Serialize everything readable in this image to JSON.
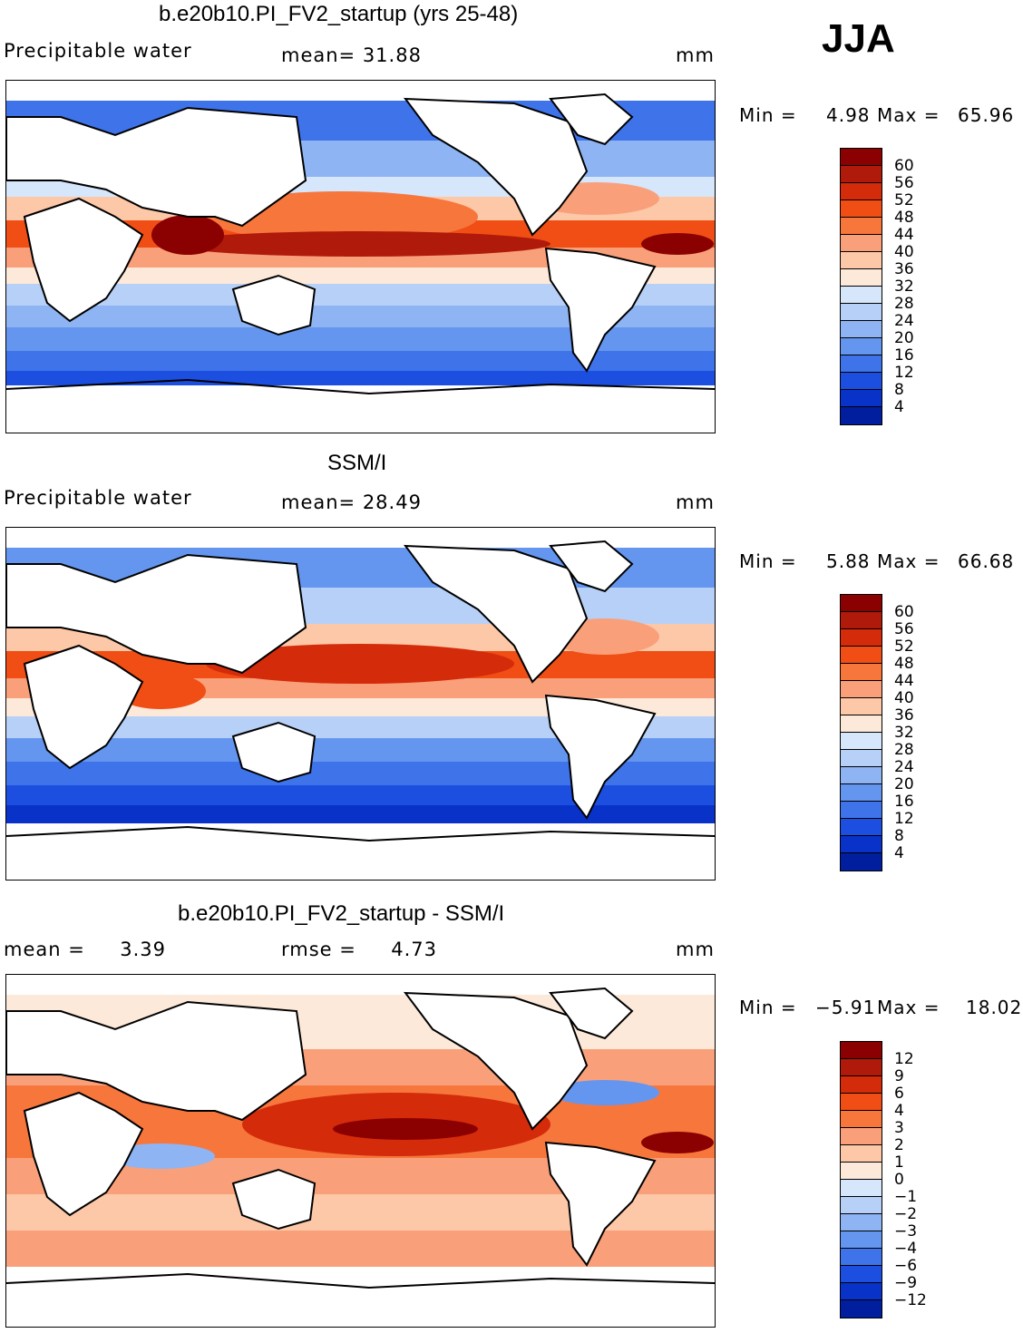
{
  "season": "JJA",
  "panels": [
    {
      "title": "b.e20b10.PI_FV2_startup (yrs 25-48)",
      "left_label": "Precipitable water",
      "center_label": "mean=   31.88",
      "units": "mm",
      "min_label": "Min =",
      "min_value": "4.98",
      "max_label": "Max =",
      "max_value": "65.96",
      "colorbar": {
        "levels": [
          "60",
          "56",
          "52",
          "48",
          "44",
          "40",
          "36",
          "32",
          "28",
          "24",
          "20",
          "16",
          "12",
          "8",
          "4"
        ],
        "colors": [
          "#8b0000",
          "#b01a0a",
          "#d42b0b",
          "#f04e14",
          "#f7763c",
          "#f9a07a",
          "#fdc8a8",
          "#fde9d9",
          "#d6e6fb",
          "#b6d0f7",
          "#8eb4f3",
          "#6496ef",
          "#3e73ea",
          "#1c4fe0",
          "#0832c8",
          "#001e9e"
        ]
      }
    },
    {
      "title": "SSM/I",
      "left_label": "Precipitable water",
      "center_label": "mean=   28.49",
      "units": "mm",
      "min_label": "Min =",
      "min_value": "5.88",
      "max_label": "Max =",
      "max_value": "66.68",
      "colorbar": {
        "levels": [
          "60",
          "56",
          "52",
          "48",
          "44",
          "40",
          "36",
          "32",
          "28",
          "24",
          "20",
          "16",
          "12",
          "8",
          "4"
        ],
        "colors": [
          "#8b0000",
          "#b01a0a",
          "#d42b0b",
          "#f04e14",
          "#f7763c",
          "#f9a07a",
          "#fdc8a8",
          "#fde9d9",
          "#d6e6fb",
          "#b6d0f7",
          "#8eb4f3",
          "#6496ef",
          "#3e73ea",
          "#1c4fe0",
          "#0832c8",
          "#001e9e"
        ]
      }
    },
    {
      "title": "b.e20b10.PI_FV2_startup - SSM/I",
      "left_label": "mean =     3.39",
      "center_label": "rmse =     4.73",
      "units": "mm",
      "min_label": "Min =",
      "min_value": "−5.91",
      "max_label": "Max =",
      "max_value": "18.02",
      "colorbar": {
        "levels": [
          "12",
          "9",
          "6",
          "4",
          "3",
          "2",
          "1",
          "0",
          "−1",
          "−2",
          "−3",
          "−4",
          "−6",
          "−9",
          "−12"
        ],
        "colors": [
          "#8b0000",
          "#b01a0a",
          "#d42b0b",
          "#f04e14",
          "#f7763c",
          "#f9a07a",
          "#fdc8a8",
          "#fde9d9",
          "#d6e6fb",
          "#b6d0f7",
          "#8eb4f3",
          "#6496ef",
          "#3e73ea",
          "#1c4fe0",
          "#0832c8",
          "#001e9e"
        ]
      }
    }
  ]
}
